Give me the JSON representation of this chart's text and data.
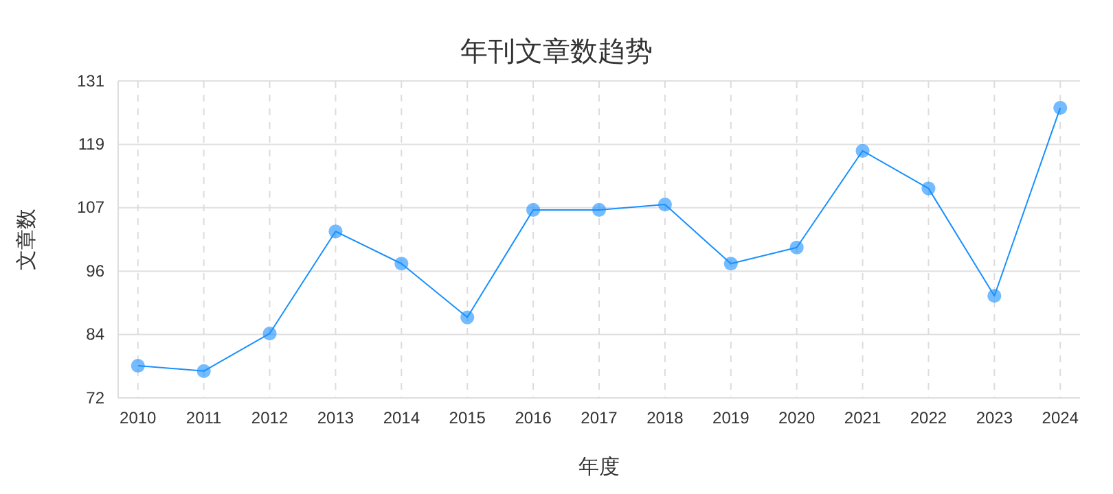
{
  "chart_data": {
    "type": "line",
    "title": "年刊文章数趋势",
    "xlabel": "年度",
    "ylabel": "文章数",
    "categories": [
      "2010",
      "2011",
      "2012",
      "2013",
      "2014",
      "2015",
      "2016",
      "2017",
      "2018",
      "2019",
      "2020",
      "2021",
      "2022",
      "2023",
      "2024"
    ],
    "series": [
      {
        "color": "#1890ff",
        "values": [
          78,
          77,
          84,
          103,
          97,
          87,
          107,
          107,
          108,
          97,
          100,
          118,
          111,
          91,
          126
        ]
      }
    ],
    "ylim": [
      72,
      131
    ],
    "yticks": [
      72,
      {
        "value": 83.8,
        "label": "84"
      },
      {
        "value": 95.6,
        "label": "96"
      },
      {
        "value": 107.4,
        "label": "107"
      },
      {
        "value": 119.2,
        "label": "119"
      },
      131
    ],
    "grid": true,
    "marker": "circle",
    "line_style": "solid"
  }
}
